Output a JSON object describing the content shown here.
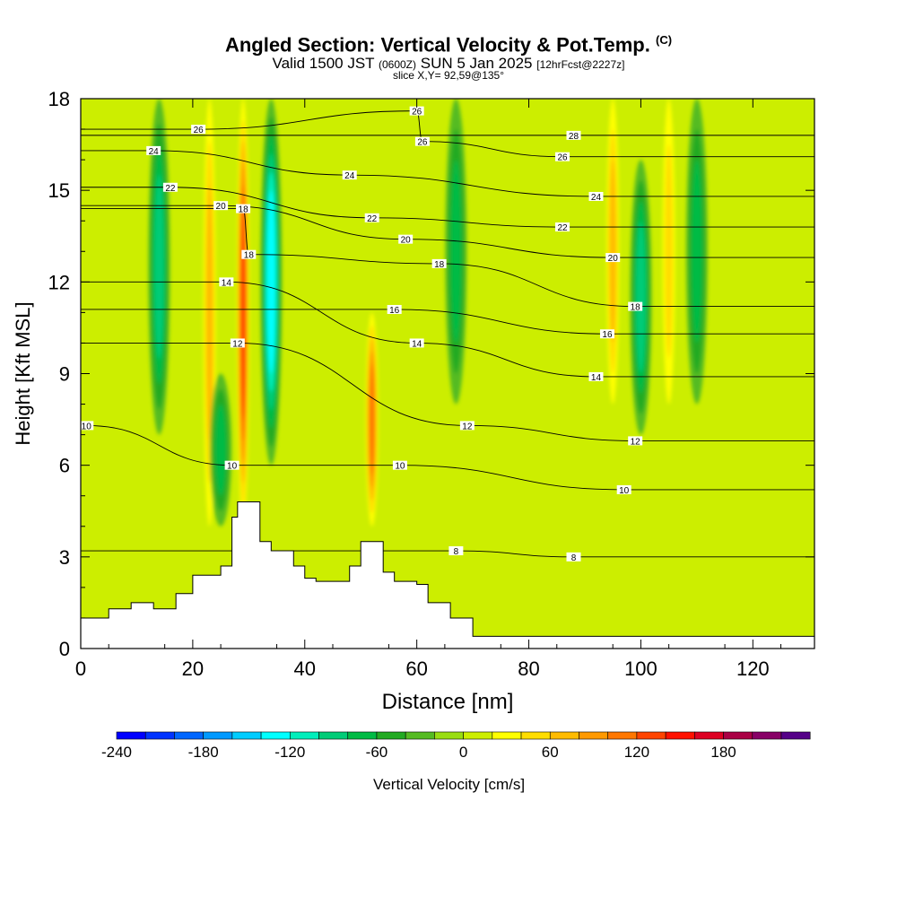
{
  "title": {
    "main": "Angled Section: Vertical Velocity & Pot.Temp.",
    "copyright": "(C)",
    "valid_pre": "Valid 1500 JST",
    "valid_zulu": "(0600Z)",
    "valid_date": "SUN 5 Jan 2025",
    "valid_fcst": "[12hrFcst@2227z]",
    "slice": "slice X,Y= 92,59@135°"
  },
  "chart_data": {
    "type": "heatmap",
    "xlabel": "Distance [nm]",
    "ylabel": "Height [Kft MSL]",
    "xlim": [
      0,
      131
    ],
    "ylim": [
      0,
      18
    ],
    "x_ticks": [
      0,
      20,
      40,
      60,
      80,
      100,
      120
    ],
    "y_ticks": [
      0,
      3,
      6,
      9,
      12,
      15,
      18
    ],
    "colorbar": {
      "label": "Vertical Velocity [cm/s]",
      "range": [
        -240,
        220
      ],
      "step": 20,
      "ticks": [
        -240,
        -180,
        -120,
        -60,
        0,
        60,
        120,
        180
      ],
      "colors": [
        "#0000ff",
        "#0033ff",
        "#0066ff",
        "#0099ff",
        "#00ccff",
        "#00ffff",
        "#00eebb",
        "#00cc77",
        "#00bb44",
        "#22aa22",
        "#55bb22",
        "#99dd11",
        "#ccee00",
        "#ffff00",
        "#ffdd00",
        "#ffbb00",
        "#ff9900",
        "#ff7700",
        "#ff4400",
        "#ff1100",
        "#dd0022",
        "#aa0044",
        "#880066",
        "#550088"
      ]
    },
    "background_velocity_cm_s": 10,
    "updraft_cores": [
      {
        "x": 23,
        "z_min": 4,
        "z_max": 18,
        "peak_cm_s": 60
      },
      {
        "x": 29,
        "z_min": 4,
        "z_max": 18,
        "peak_cm_s": 120
      },
      {
        "x": 52,
        "z_min": 4,
        "z_max": 11,
        "peak_cm_s": 100
      },
      {
        "x": 95,
        "z_min": 8,
        "z_max": 18,
        "peak_cm_s": 60
      },
      {
        "x": 105,
        "z_min": 8,
        "z_max": 18,
        "peak_cm_s": 40
      }
    ],
    "downdraft_cores": [
      {
        "x": 14,
        "z_min": 7,
        "z_max": 18,
        "peak_cm_s": -80
      },
      {
        "x": 25,
        "z_min": 4,
        "z_max": 9,
        "peak_cm_s": -60
      },
      {
        "x": 34,
        "z_min": 6,
        "z_max": 18,
        "peak_cm_s": -120
      },
      {
        "x": 67,
        "z_min": 8,
        "z_max": 18,
        "peak_cm_s": -50
      },
      {
        "x": 100,
        "z_min": 7,
        "z_max": 16,
        "peak_cm_s": -70
      },
      {
        "x": 110,
        "z_min": 8,
        "z_max": 18,
        "peak_cm_s": -50
      }
    ],
    "terrain_height_kft": {
      "x": [
        0,
        5,
        9,
        13,
        17,
        20,
        23,
        25,
        27,
        28,
        30,
        32,
        34,
        36,
        38,
        40,
        42,
        44,
        46,
        48,
        50,
        52,
        54,
        56,
        58,
        60,
        62,
        66,
        70,
        131
      ],
      "z": [
        1,
        1.3,
        1.5,
        1.3,
        1.8,
        2.4,
        2.4,
        2.7,
        4.3,
        4.8,
        4.8,
        3.5,
        3.2,
        3.2,
        2.7,
        2.3,
        2.2,
        2.2,
        2.2,
        2.7,
        3.5,
        3.5,
        2.5,
        2.2,
        2.2,
        2.1,
        1.5,
        1.0,
        0.4,
        0.4
      ]
    },
    "theta_contour_labels": [
      {
        "x": 1,
        "z": 7.3,
        "label": "10"
      },
      {
        "x": 27,
        "z": 6.0,
        "label": "10"
      },
      {
        "x": 57,
        "z": 6.0,
        "label": "10"
      },
      {
        "x": 97,
        "z": 5.2,
        "label": "10"
      },
      {
        "x": 67,
        "z": 3.2,
        "label": "8"
      },
      {
        "x": 88,
        "z": 3.0,
        "label": "8"
      },
      {
        "x": 28,
        "z": 10.0,
        "label": "12"
      },
      {
        "x": 69,
        "z": 7.3,
        "label": "12"
      },
      {
        "x": 99,
        "z": 6.8,
        "label": "12"
      },
      {
        "x": 26,
        "z": 12.0,
        "label": "14"
      },
      {
        "x": 60,
        "z": 10.0,
        "label": "14"
      },
      {
        "x": 92,
        "z": 8.9,
        "label": "14"
      },
      {
        "x": 56,
        "z": 11.1,
        "label": "16"
      },
      {
        "x": 94,
        "z": 10.3,
        "label": "16"
      },
      {
        "x": 30,
        "z": 12.9,
        "label": "18"
      },
      {
        "x": 64,
        "z": 12.6,
        "label": "18"
      },
      {
        "x": 99,
        "z": 11.2,
        "label": "18"
      },
      {
        "x": 29,
        "z": 14.4,
        "label": "18"
      },
      {
        "x": 25,
        "z": 14.5,
        "label": "20"
      },
      {
        "x": 58,
        "z": 13.4,
        "label": "20"
      },
      {
        "x": 95,
        "z": 12.8,
        "label": "20"
      },
      {
        "x": 16,
        "z": 15.1,
        "label": "22"
      },
      {
        "x": 52,
        "z": 14.1,
        "label": "22"
      },
      {
        "x": 86,
        "z": 13.8,
        "label": "22"
      },
      {
        "x": 13,
        "z": 16.3,
        "label": "24"
      },
      {
        "x": 48,
        "z": 15.5,
        "label": "24"
      },
      {
        "x": 92,
        "z": 14.8,
        "label": "24"
      },
      {
        "x": 21,
        "z": 17.0,
        "label": "26"
      },
      {
        "x": 60,
        "z": 17.6,
        "label": "26"
      },
      {
        "x": 61,
        "z": 16.6,
        "label": "26"
      },
      {
        "x": 86,
        "z": 16.1,
        "label": "26"
      },
      {
        "x": 88,
        "z": 16.8,
        "label": "28"
      }
    ]
  }
}
